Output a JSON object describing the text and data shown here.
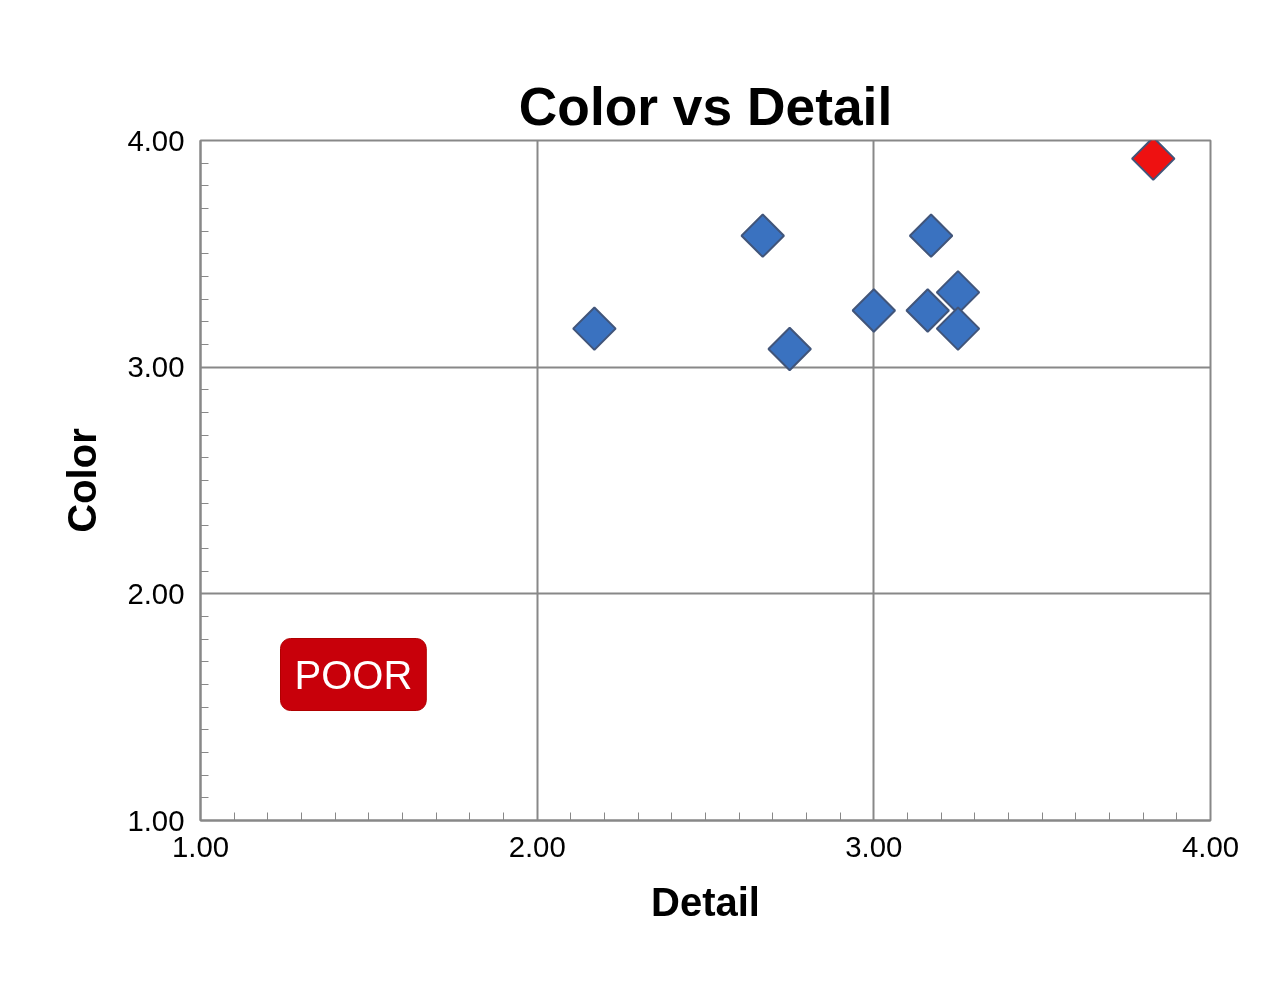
{
  "chart_data": {
    "type": "scatter",
    "title": "Color vs Detail",
    "xlabel": "Detail",
    "ylabel": "Color",
    "xlim": [
      1,
      4
    ],
    "ylim": [
      1,
      4
    ],
    "xticks": [
      {
        "value": 1,
        "label": "1.00"
      },
      {
        "value": 2,
        "label": "2.00"
      },
      {
        "value": 3,
        "label": "3.00"
      },
      {
        "value": 4,
        "label": "4.00"
      }
    ],
    "yticks": [
      {
        "value": 1,
        "label": "1.00"
      },
      {
        "value": 2,
        "label": "2.00"
      },
      {
        "value": 3,
        "label": "3.00"
      },
      {
        "value": 4,
        "label": "4.00"
      }
    ],
    "grid": true,
    "marker": "diamond",
    "series": [
      {
        "color": "#3a72c0",
        "x": [
          2.17,
          2.67,
          2.75,
          3.0,
          3.17,
          3.16,
          3.25,
          3.25
        ],
        "values": [
          3.17,
          3.58,
          3.08,
          3.25,
          3.58,
          3.25,
          3.33,
          3.17
        ]
      },
      {
        "color": "#ee1111",
        "x": [
          3.83
        ],
        "values": [
          3.92
        ]
      }
    ],
    "annotations": [
      "POOR"
    ]
  }
}
